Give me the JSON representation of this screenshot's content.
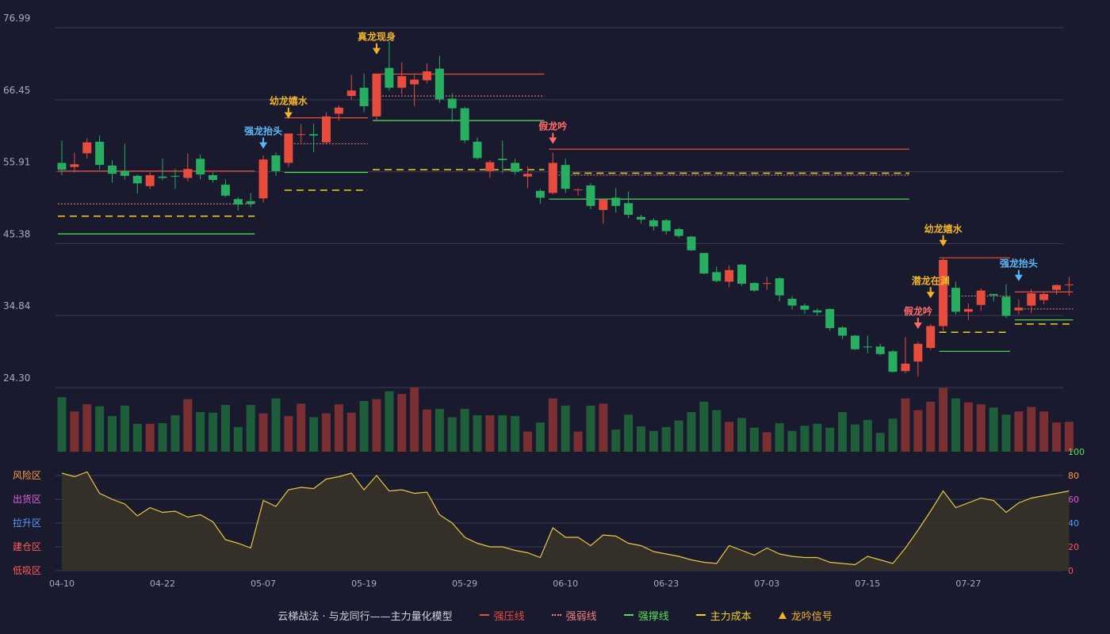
{
  "colors": {
    "background": "#1a1a2e",
    "up": "#e74c3c",
    "down": "#27ae60",
    "strong_pressure": "#e74c3c",
    "weak_line": "#f08080",
    "support": "#55e05a",
    "cost": "#f0d020",
    "signal": "#f0b429",
    "head_signal": "#5ab8f5",
    "oscillator": "#e8c840",
    "grid": "#3a3d52"
  },
  "legend": {
    "title": "云梯战法 · 与龙同行——主力量化模型",
    "items": [
      {
        "label": "强压线",
        "color": "#e74c3c",
        "style": "solid"
      },
      {
        "label": "强弱线",
        "color": "#f08080",
        "style": "dotted"
      },
      {
        "label": "强撑线",
        "color": "#55e05a",
        "style": "solid"
      },
      {
        "label": "主力成本",
        "color": "#f0d020",
        "style": "dashed"
      },
      {
        "label": "龙吟信号",
        "color": "#f0b429",
        "style": "triangle"
      }
    ]
  },
  "chart_data": [
    {
      "type": "candlestick",
      "title": "",
      "ylim": [
        24.3,
        76.99
      ],
      "y_ticks": [
        "76.99",
        "66.45",
        "55.91",
        "45.38",
        "34.84",
        "24.30"
      ],
      "x_tick_labels": [
        "04-10",
        "04-22",
        "05-07",
        "05-19",
        "05-29",
        "06-10",
        "06-23",
        "07-03",
        "07-15",
        "07-27"
      ],
      "x_tick_index": [
        0,
        8,
        16,
        24,
        32,
        40,
        48,
        56,
        64,
        72
      ],
      "candles": [
        [
          57.2,
          56.2,
          60.5,
          55.4
        ],
        [
          56.6,
          57.0,
          58.7,
          55.8
        ],
        [
          58.6,
          60.2,
          60.8,
          57.8
        ],
        [
          60.3,
          56.9,
          61.2,
          56.2
        ],
        [
          56.8,
          55.6,
          57.6,
          54.3
        ],
        [
          56.0,
          55.3,
          60.0,
          54.8
        ],
        [
          55.3,
          54.2,
          55.5,
          52.7
        ],
        [
          53.8,
          55.4,
          55.8,
          53.4
        ],
        [
          55.2,
          55.0,
          57.8,
          54.7
        ],
        [
          55.3,
          55.2,
          56.3,
          53.4
        ],
        [
          55.0,
          56.3,
          58.6,
          54.5
        ],
        [
          57.8,
          55.5,
          58.4,
          54.8
        ],
        [
          55.4,
          54.7,
          55.8,
          54.3
        ],
        [
          54.0,
          52.4,
          54.8,
          52.2
        ],
        [
          51.9,
          51.1,
          52.2,
          50.2
        ],
        [
          51.6,
          51.2,
          52.8,
          50.7
        ],
        [
          52.0,
          57.7,
          58.3,
          51.4
        ],
        [
          58.3,
          56.0,
          58.7,
          55.3
        ],
        [
          57.2,
          61.5,
          61.5,
          56.6
        ],
        [
          61.3,
          61.4,
          62.9,
          60.2
        ],
        [
          61.4,
          61.2,
          62.9,
          58.8
        ],
        [
          60.2,
          64.0,
          64.6,
          60.1
        ],
        [
          64.4,
          65.3,
          65.6,
          63.4
        ],
        [
          67.0,
          67.8,
          70.1,
          66.5
        ],
        [
          68.2,
          65.5,
          70.3,
          64.6
        ],
        [
          64.0,
          70.2,
          70.2,
          63.5
        ],
        [
          71.1,
          68.2,
          75.0,
          67.8
        ],
        [
          68.2,
          69.9,
          71.9,
          67.2
        ],
        [
          68.7,
          69.4,
          70.0,
          65.5
        ],
        [
          69.3,
          70.6,
          71.8,
          68.9
        ],
        [
          71.0,
          66.5,
          72.9,
          66.0
        ],
        [
          66.6,
          65.2,
          67.4,
          63.2
        ],
        [
          65.2,
          60.5,
          65.4,
          60.1
        ],
        [
          60.3,
          57.9,
          60.9,
          57.7
        ],
        [
          56.0,
          57.3,
          57.6,
          55.0
        ],
        [
          57.8,
          57.6,
          60.5,
          55.7
        ],
        [
          57.2,
          55.9,
          57.8,
          55.5
        ],
        [
          55.2,
          55.6,
          56.7,
          53.5
        ],
        [
          53.1,
          52.1,
          53.4,
          51.2
        ],
        [
          52.8,
          57.2,
          58.7,
          52.6
        ],
        [
          56.9,
          53.4,
          57.8,
          52.8
        ],
        [
          53.3,
          53.3,
          53.5,
          52.4
        ],
        [
          53.9,
          50.9,
          54.2,
          50.4
        ],
        [
          50.3,
          51.8,
          52.0,
          48.3
        ],
        [
          52.1,
          50.9,
          53.5,
          49.9
        ],
        [
          51.3,
          49.6,
          53.0,
          49.1
        ],
        [
          49.3,
          48.9,
          49.6,
          48.3
        ],
        [
          48.8,
          47.9,
          49.1,
          47.3
        ],
        [
          48.8,
          47.2,
          49.0,
          46.7
        ],
        [
          47.5,
          46.5,
          47.7,
          46.2
        ],
        [
          46.4,
          44.4,
          46.5,
          44.3
        ],
        [
          44.0,
          41.0,
          44.0,
          40.9
        ],
        [
          41.2,
          39.9,
          42.0,
          39.7
        ],
        [
          39.8,
          41.5,
          42.2,
          39.0
        ],
        [
          42.3,
          39.5,
          42.4,
          39.2
        ],
        [
          39.6,
          38.5,
          39.7,
          38.3
        ],
        [
          39.6,
          39.6,
          40.5,
          38.6
        ],
        [
          40.3,
          37.8,
          40.5,
          36.9
        ],
        [
          37.3,
          36.3,
          37.7,
          35.7
        ],
        [
          36.3,
          35.7,
          36.6,
          35.1
        ],
        [
          35.6,
          35.3,
          35.9,
          34.8
        ],
        [
          35.8,
          33.0,
          35.9,
          32.6
        ],
        [
          33.1,
          31.9,
          33.3,
          31.4
        ],
        [
          31.9,
          29.9,
          32.0,
          29.8
        ],
        [
          30.3,
          30.2,
          31.9,
          29.3
        ],
        [
          30.3,
          29.2,
          30.7,
          29.0
        ],
        [
          29.6,
          26.6,
          29.8,
          26.5
        ],
        [
          26.7,
          27.8,
          31.7,
          26.4
        ],
        [
          28.1,
          30.7,
          31.0,
          25.9
        ],
        [
          30.1,
          33.3,
          33.6,
          29.8
        ],
        [
          33.3,
          43.0,
          43.3,
          32.6
        ],
        [
          38.9,
          35.4,
          39.8,
          35.0
        ],
        [
          35.4,
          35.8,
          36.6,
          34.2
        ],
        [
          36.4,
          38.5,
          38.8,
          35.5
        ],
        [
          38.0,
          37.8,
          37.9,
          36.9
        ],
        [
          37.6,
          34.8,
          39.4,
          34.5
        ],
        [
          35.6,
          36.0,
          37.2,
          35.0
        ],
        [
          36.3,
          38.1,
          38.7,
          35.2
        ],
        [
          37.1,
          38.0,
          38.2,
          36.5
        ],
        [
          38.6,
          39.3,
          39.4,
          37.9
        ],
        [
          39.3,
          39.4,
          40.5,
          37.7
        ]
      ],
      "lines": [
        {
          "name": "强压线",
          "kind": "pressure",
          "y": 56.0,
          "x_range": [
            0,
            15
          ]
        },
        {
          "name": "强弱线",
          "kind": "weak",
          "y": 51.2,
          "x_range": [
            0,
            15
          ]
        },
        {
          "name": "主力成本",
          "kind": "cost",
          "y": 49.4,
          "x_range": [
            0,
            15
          ]
        },
        {
          "name": "强撑线",
          "kind": "support",
          "y": 46.8,
          "x_range": [
            0,
            15
          ]
        },
        {
          "name": "强压线",
          "kind": "pressure",
          "y": 63.8,
          "x_range": [
            18,
            24
          ]
        },
        {
          "name": "强弱线",
          "kind": "weak",
          "y": 60.0,
          "x_range": [
            18,
            24
          ]
        },
        {
          "name": "强撑线",
          "kind": "support",
          "y": 55.8,
          "x_range": [
            18,
            24
          ]
        },
        {
          "name": "主力成本",
          "kind": "cost",
          "y": 53.2,
          "x_range": [
            18,
            24
          ]
        },
        {
          "name": "强压线",
          "kind": "pressure",
          "y": 70.2,
          "x_range": [
            25,
            38
          ]
        },
        {
          "name": "强弱线",
          "kind": "weak",
          "y": 67.0,
          "x_range": [
            25,
            38
          ]
        },
        {
          "name": "强撑线",
          "kind": "support",
          "y": 63.4,
          "x_range": [
            25,
            38
          ]
        },
        {
          "name": "主力成本",
          "kind": "cost",
          "y": 56.2,
          "x_range": [
            25,
            38
          ]
        },
        {
          "name": "强压线",
          "kind": "pressure",
          "y": 59.2,
          "x_range": [
            39,
            67
          ]
        },
        {
          "name": "主力成本",
          "kind": "cost",
          "y": 55.7,
          "x_range": [
            39,
            67
          ]
        },
        {
          "name": "强弱线",
          "kind": "weak",
          "y": 55.4,
          "x_range": [
            39,
            67
          ]
        },
        {
          "name": "强撑线",
          "kind": "support",
          "y": 51.9,
          "x_range": [
            39,
            67
          ]
        },
        {
          "name": "强压线",
          "kind": "pressure",
          "y": 43.3,
          "x_range": [
            70,
            75
          ]
        },
        {
          "name": "强弱线",
          "kind": "weak",
          "y": 37.7,
          "x_range": [
            70,
            75
          ]
        },
        {
          "name": "主力成本",
          "kind": "cost",
          "y": 32.4,
          "x_range": [
            70,
            75
          ]
        },
        {
          "name": "强撑线",
          "kind": "support",
          "y": 29.6,
          "x_range": [
            70,
            75
          ]
        },
        {
          "name": "强压线",
          "kind": "pressure",
          "y": 38.3,
          "x_range": [
            76,
            80
          ]
        },
        {
          "name": "强弱线",
          "kind": "weak",
          "y": 35.8,
          "x_range": [
            76,
            80
          ]
        },
        {
          "name": "强撑线",
          "kind": "support",
          "y": 34.2,
          "x_range": [
            76,
            80
          ]
        },
        {
          "name": "主力成本",
          "kind": "cost",
          "y": 33.6,
          "x_range": [
            76,
            80
          ]
        }
      ],
      "signals": [
        {
          "index": 16,
          "label": "强龙抬头",
          "kind": "head",
          "price": 59.4
        },
        {
          "index": 18,
          "label": "幼龙嬉水",
          "kind": "dragon",
          "price": 63.8
        },
        {
          "index": 25,
          "label": "真龙现身",
          "kind": "dragon",
          "price": 73.2
        },
        {
          "index": 39,
          "label": "假龙吟",
          "kind": "fake",
          "price": 60.1
        },
        {
          "index": 68,
          "label": "假龙吟",
          "kind": "fake",
          "price": 33.0
        },
        {
          "index": 69,
          "label": "潜龙在渊",
          "kind": "dragon",
          "price": 37.5
        },
        {
          "index": 70,
          "label": "幼龙嬉水",
          "kind": "dragon",
          "price": 45.1
        },
        {
          "index": 76,
          "label": "强龙抬头",
          "kind": "head",
          "price": 40.0
        }
      ],
      "volume": [
        0.84,
        0.62,
        0.73,
        0.7,
        0.55,
        0.71,
        0.43,
        0.43,
        0.44,
        0.56,
        0.81,
        0.61,
        0.6,
        0.72,
        0.38,
        0.72,
        0.59,
        0.82,
        0.55,
        0.74,
        0.53,
        0.59,
        0.73,
        0.6,
        0.78,
        0.81,
        0.93,
        0.89,
        0.99,
        0.65,
        0.66,
        0.53,
        0.66,
        0.56,
        0.56,
        0.56,
        0.55,
        0.31,
        0.45,
        0.82,
        0.71,
        0.31,
        0.71,
        0.74,
        0.34,
        0.57,
        0.39,
        0.32,
        0.38,
        0.48,
        0.61,
        0.77,
        0.64,
        0.46,
        0.52,
        0.37,
        0.3,
        0.44,
        0.32,
        0.4,
        0.43,
        0.37,
        0.61,
        0.42,
        0.49,
        0.29,
        0.51,
        0.82,
        0.64,
        0.77,
        0.98,
        0.82,
        0.76,
        0.73,
        0.68,
        0.57,
        0.62,
        0.69,
        0.62,
        0.45,
        0.46
      ]
    },
    {
      "type": "area",
      "title": "",
      "ylim": [
        0,
        100
      ],
      "y_ticks": [
        "0",
        "20",
        "40",
        "60",
        "80",
        "100"
      ],
      "zone_labels": [
        {
          "label": "风险区",
          "level": 80,
          "color": "#ff9a40"
        },
        {
          "label": "出货区",
          "level": 60,
          "color": "#e060e0"
        },
        {
          "label": "拉升区",
          "level": 40,
          "color": "#5a9cff"
        },
        {
          "label": "建仓区",
          "level": 20,
          "color": "#ff5a5a"
        },
        {
          "label": "低吸区",
          "level": 0,
          "color": "#ff5a5a"
        }
      ],
      "values": [
        82,
        79,
        83,
        65,
        60,
        56,
        46,
        53,
        49,
        50,
        45,
        47,
        41,
        26,
        23,
        19,
        59,
        54,
        68,
        70,
        69,
        77,
        79,
        82,
        68,
        80,
        67,
        68,
        65,
        66,
        47,
        40,
        28,
        23,
        20,
        20,
        17,
        15,
        11,
        36,
        28,
        28,
        21,
        30,
        29,
        23,
        21,
        16,
        14,
        12,
        9,
        7,
        6,
        21,
        17,
        13,
        19,
        14,
        12,
        11,
        11,
        7,
        6,
        5,
        12,
        9,
        6,
        19,
        34,
        50,
        67,
        53,
        57,
        61,
        59,
        49,
        57,
        61,
        63,
        65,
        67
      ]
    }
  ]
}
